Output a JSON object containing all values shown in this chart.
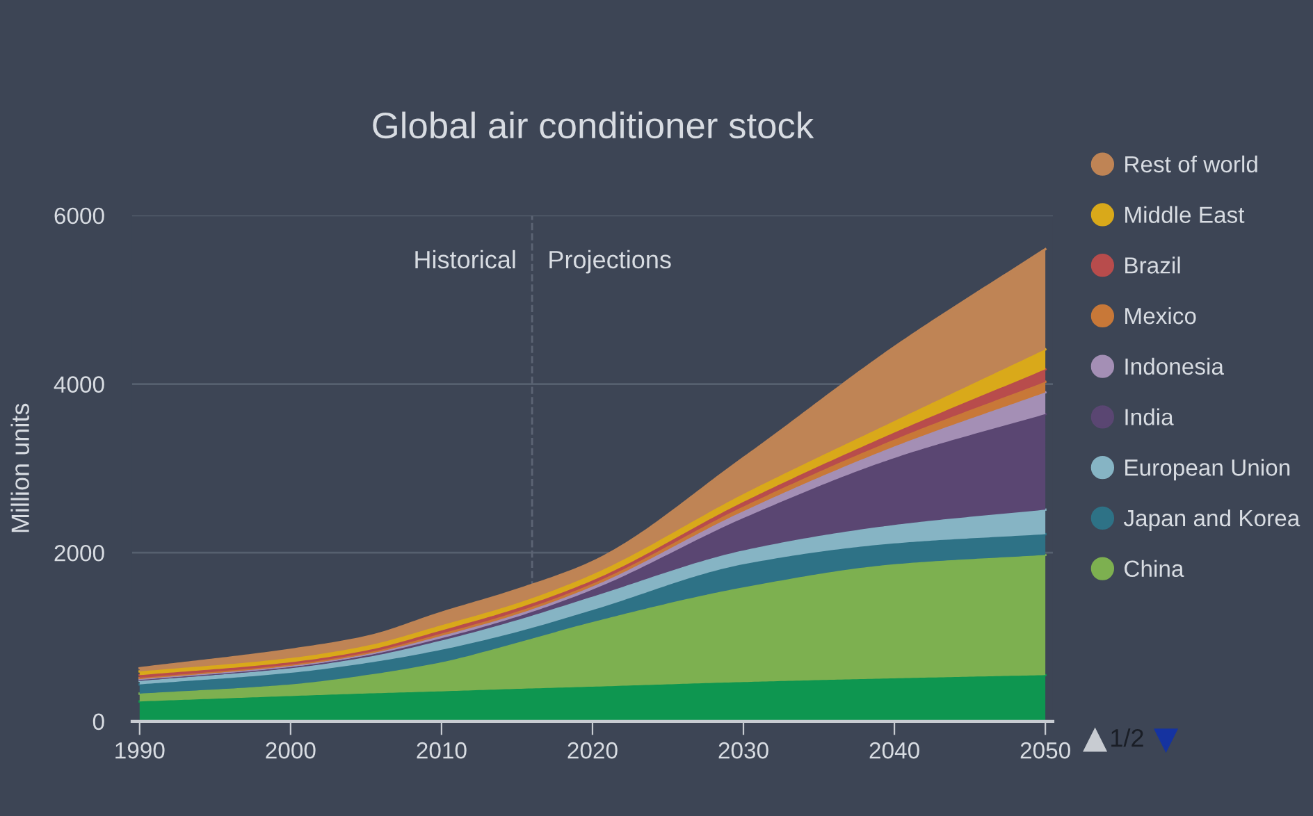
{
  "chart_data": {
    "type": "area",
    "stacked": true,
    "title": "Global air conditioner stock",
    "ylabel": "Million units",
    "x": [
      1990,
      2000,
      2005,
      2010,
      2015,
      2020,
      2030,
      2040,
      2050
    ],
    "series": [
      {
        "color": "#0e9650",
        "values": [
          236,
          300,
          330,
          356,
          385,
          411,
          466,
          510,
          548
        ]
      },
      {
        "name": "China",
        "color": "#7db050",
        "values": [
          93,
          138,
          218,
          345,
          547,
          767,
          1123,
          1353,
          1425
        ]
      },
      {
        "name": "Japan and Korea",
        "color": "#2e7286",
        "values": [
          109,
          137,
          142,
          148,
          128,
          142,
          274,
          247,
          246
        ]
      },
      {
        "name": "European Union",
        "color": "#86b4c4",
        "values": [
          44,
          55,
          70,
          110,
          140,
          159,
          164,
          219,
          291
        ]
      },
      {
        "name": "India",
        "color": "#5a4672",
        "values": [
          11,
          17,
          20,
          27,
          40,
          83,
          384,
          794,
          1134
        ]
      },
      {
        "name": "Indonesia",
        "color": "#a48fb5",
        "values": [
          11,
          11,
          15,
          28,
          30,
          38,
          82,
          137,
          257
        ]
      },
      {
        "name": "Mexico",
        "color": "#c87838",
        "values": [
          11,
          16,
          17,
          27,
          30,
          33,
          55,
          82,
          126
        ]
      },
      {
        "name": "Brazil",
        "color": "#b84c4c",
        "values": [
          33,
          27,
          28,
          38,
          40,
          38,
          55,
          83,
          148
        ]
      },
      {
        "name": "Middle East",
        "color": "#d9a91a",
        "values": [
          44,
          50,
          55,
          61,
          60,
          71,
          93,
          137,
          236
        ]
      },
      {
        "name": "Rest of world",
        "color": "#bf8455",
        "values": [
          38,
          98,
          105,
          148,
          160,
          148,
          427,
          876,
          1189
        ]
      }
    ],
    "xlim": [
      1989.5,
      2050.5
    ],
    "xticks": [
      1990,
      2000,
      2010,
      2020,
      2030,
      2040,
      2050
    ],
    "ylim": [
      0,
      6000
    ],
    "yticks": [
      0,
      2000,
      4000,
      6000
    ],
    "grid": "y",
    "legend": "right",
    "ref_lines": [
      {
        "axis": "x",
        "value": 2016,
        "line_style": "dashed",
        "color": "#5c6474"
      }
    ],
    "annotations": [
      {
        "text": "Historical",
        "x": 2016,
        "y": 5450
      },
      {
        "text": "Projections",
        "x": 2016,
        "y": 5450
      },
      "1/2"
    ]
  }
}
